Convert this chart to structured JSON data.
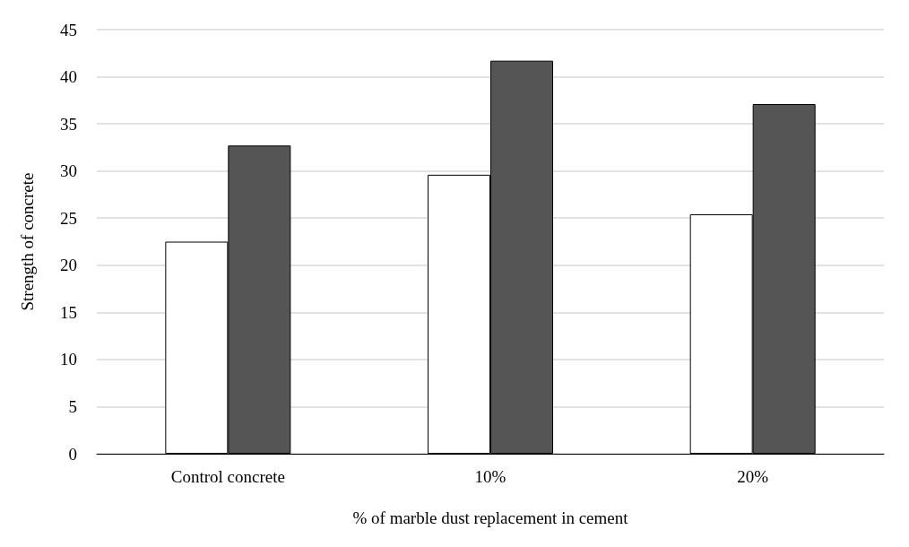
{
  "chart_data": {
    "type": "bar",
    "xlabel": "% of marble dust replacement in cement",
    "ylabel": "Strength of concrete",
    "categories": [
      "Control concrete",
      "10%",
      "20%"
    ],
    "series": [
      {
        "color": "#ffffff",
        "values": [
          22.5,
          29.6,
          25.4
        ]
      },
      {
        "color": "#555555",
        "values": [
          32.7,
          41.7,
          37.1
        ]
      }
    ],
    "ylim": [
      0,
      45
    ],
    "yticks": [
      0,
      5,
      10,
      15,
      20,
      25,
      30,
      35,
      40,
      45
    ],
    "grid": "y"
  }
}
